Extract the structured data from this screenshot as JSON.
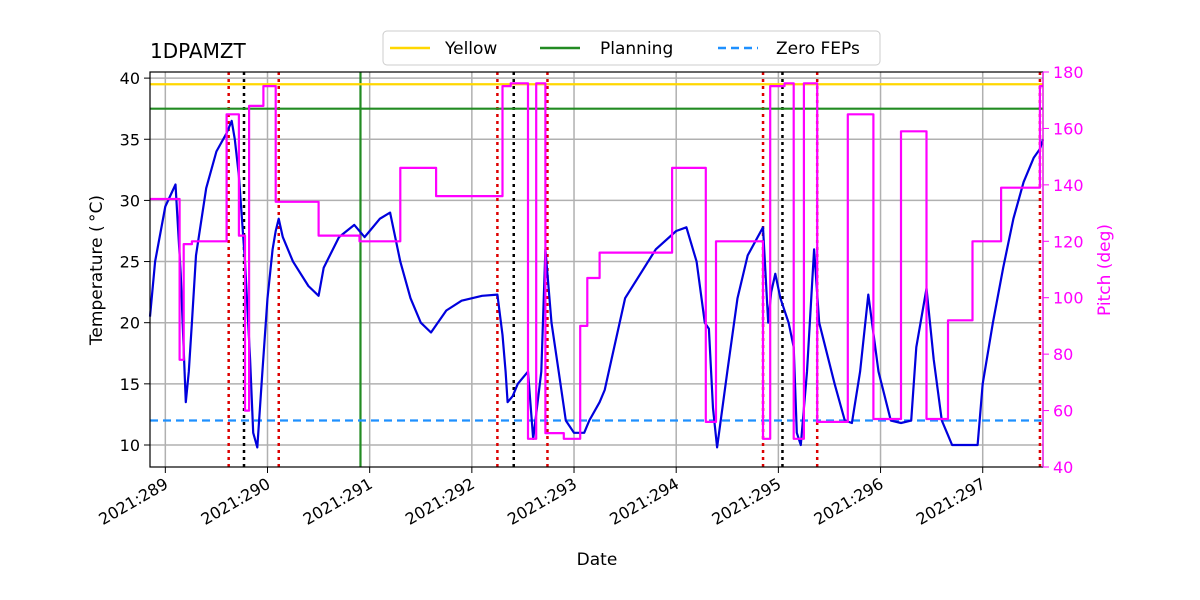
{
  "chart_data": {
    "type": "line",
    "title": "1DPAMZT",
    "xlabel": "Date",
    "ylabel_left": "Temperature ($^\\circ$C)",
    "ylabel_left_display": "Temperature ( °C)",
    "ylabel_right": "Pitch (deg)",
    "xlim": [
      288.85,
      297.59
    ],
    "ylim_left": [
      8.2,
      40.5
    ],
    "ylim_right": [
      40,
      180
    ],
    "grid": true,
    "legend_placement": "top-center",
    "x_ticks": [
      {
        "value": 289,
        "label": "2021:289"
      },
      {
        "value": 290,
        "label": "2021:290"
      },
      {
        "value": 291,
        "label": "2021:291"
      },
      {
        "value": 292,
        "label": "2021:292"
      },
      {
        "value": 293,
        "label": "2021:293"
      },
      {
        "value": 294,
        "label": "2021:294"
      },
      {
        "value": 295,
        "label": "2021:295"
      },
      {
        "value": 296,
        "label": "2021:296"
      },
      {
        "value": 297,
        "label": "2021:297"
      }
    ],
    "y_ticks_left": [
      10,
      15,
      20,
      25,
      30,
      35,
      40
    ],
    "y_ticks_right": [
      40,
      60,
      80,
      100,
      120,
      140,
      160,
      180
    ],
    "colors": {
      "temperature": "#0000dd",
      "pitch": "#ff00ff",
      "yellow": "#ffd700",
      "planning": "#228b22",
      "zero_feps": "#1e90ff",
      "red_markers": "#dd0000",
      "black_markers": "#000000",
      "grid": "#b0b0b0",
      "right_axis": "#ff00ff"
    },
    "legend": [
      {
        "label": "Yellow",
        "color": "#ffd700",
        "style": "solid"
      },
      {
        "label": "Planning",
        "color": "#228b22",
        "style": "solid"
      },
      {
        "label": "Zero FEPs",
        "color": "#1e90ff",
        "style": "dashed"
      }
    ],
    "hlines": [
      {
        "name": "Yellow",
        "value": 39.5,
        "color": "#ffd700",
        "style": "solid"
      },
      {
        "name": "Planning",
        "value": 37.5,
        "color": "#228b22",
        "style": "solid"
      },
      {
        "name": "Zero FEPs",
        "value": 12.0,
        "color": "#1e90ff",
        "style": "dashed"
      }
    ],
    "vline_now": {
      "value": 290.91,
      "color": "#228b22",
      "style": "solid"
    },
    "vlines_red": [
      289.62,
      290.11,
      292.25,
      292.74,
      294.85,
      295.38,
      297.56
    ],
    "vlines_black": [
      289.77,
      292.41,
      295.04
    ],
    "series": [
      {
        "name": "Temperature",
        "axis": "left",
        "color": "#0000dd",
        "x": [
          288.85,
          288.9,
          289.0,
          289.1,
          289.15,
          289.2,
          289.23,
          289.26,
          289.3,
          289.4,
          289.5,
          289.6,
          289.65,
          289.68,
          289.72,
          289.78,
          289.83,
          289.86,
          289.9,
          289.95,
          290.0,
          290.05,
          290.08,
          290.11,
          290.15,
          290.25,
          290.4,
          290.5,
          290.55,
          290.7,
          290.85,
          290.95,
          291.0,
          291.1,
          291.2,
          291.3,
          291.4,
          291.5,
          291.6,
          291.75,
          291.9,
          292.1,
          292.25,
          292.3,
          292.33,
          292.35,
          292.4,
          292.45,
          292.5,
          292.55,
          292.6,
          292.68,
          292.72,
          292.78,
          292.85,
          292.92,
          293.0,
          293.1,
          293.15,
          293.25,
          293.3,
          293.5,
          293.8,
          294.0,
          294.1,
          294.2,
          294.28,
          294.32,
          294.36,
          294.4,
          294.5,
          294.6,
          294.7,
          294.85,
          294.9,
          294.93,
          294.97,
          295.02,
          295.1,
          295.15,
          295.18,
          295.22,
          295.28,
          295.35,
          295.4,
          295.55,
          295.65,
          295.72,
          295.8,
          295.88,
          295.98,
          296.1,
          296.2,
          296.3,
          296.35,
          296.45,
          296.52,
          296.6,
          296.65,
          296.7,
          296.8,
          296.9,
          296.95,
          297.0,
          297.1,
          297.2,
          297.3,
          297.4,
          297.5,
          297.56,
          297.59
        ],
        "y": [
          20.5,
          25.0,
          29.5,
          31.3,
          24.0,
          13.5,
          16.0,
          20.0,
          25.5,
          31.0,
          34.0,
          35.5,
          36.5,
          35.0,
          32.0,
          25.0,
          17.0,
          11.0,
          9.8,
          16.0,
          22.0,
          26.0,
          27.5,
          28.5,
          27.0,
          25.0,
          23.0,
          22.2,
          24.5,
          27.0,
          28.0,
          27.0,
          27.5,
          28.5,
          29.0,
          25.0,
          22.0,
          20.0,
          19.2,
          21.0,
          21.8,
          22.2,
          22.3,
          19.0,
          16.0,
          13.5,
          14.0,
          15.0,
          15.5,
          16.0,
          10.5,
          16.0,
          26.0,
          20.0,
          16.0,
          12.0,
          11.0,
          11.0,
          12.0,
          13.5,
          14.5,
          22.0,
          26.0,
          27.5,
          27.8,
          25.0,
          20.0,
          19.5,
          13.0,
          9.8,
          16.0,
          22.0,
          25.5,
          27.8,
          20.0,
          22.5,
          24.0,
          22.0,
          20.0,
          18.0,
          11.0,
          10.0,
          16.0,
          26.0,
          20.0,
          15.0,
          12.0,
          11.8,
          16.0,
          22.3,
          16.0,
          12.0,
          11.8,
          12.0,
          18.0,
          22.8,
          17.0,
          12.0,
          11.0,
          10.0,
          10.0,
          10.0,
          10.0,
          15.0,
          20.0,
          24.5,
          28.5,
          31.5,
          33.5,
          34.2,
          35.0
        ]
      },
      {
        "name": "Pitch",
        "axis": "right",
        "color": "#ff00ff",
        "x": [
          288.85,
          289.14,
          289.14,
          289.18,
          289.18,
          289.26,
          289.26,
          289.6,
          289.6,
          289.72,
          289.72,
          289.78,
          289.78,
          289.82,
          289.82,
          289.96,
          289.96,
          290.0,
          290.0,
          290.08,
          290.08,
          290.1,
          290.1,
          290.5,
          290.5,
          290.9,
          290.9,
          291.3,
          291.3,
          291.65,
          291.65,
          292.22,
          292.22,
          292.3,
          292.3,
          292.38,
          292.38,
          292.55,
          292.55,
          292.63,
          292.63,
          292.72,
          292.72,
          292.9,
          292.9,
          293.06,
          293.06,
          293.13,
          293.13,
          293.25,
          293.25,
          293.96,
          293.96,
          294.29,
          294.29,
          294.39,
          294.39,
          294.85,
          294.85,
          294.92,
          294.92,
          295.06,
          295.06,
          295.15,
          295.15,
          295.25,
          295.25,
          295.38,
          295.38,
          295.68,
          295.68,
          295.93,
          295.93,
          296.2,
          296.2,
          296.45,
          296.45,
          296.66,
          296.66,
          296.9,
          296.9,
          297.18,
          297.18,
          297.56,
          297.56,
          297.59
        ],
        "y": [
          135,
          135,
          78,
          78,
          119,
          119,
          120,
          120,
          165,
          165,
          122,
          122,
          60,
          60,
          168,
          168,
          175,
          175,
          175,
          175,
          134,
          134,
          134,
          134,
          122,
          122,
          120,
          120,
          146,
          146,
          136,
          136,
          136,
          136,
          175,
          175,
          176,
          176,
          50,
          50,
          176,
          176,
          52,
          52,
          50,
          50,
          90,
          90,
          107,
          107,
          116,
          116,
          146,
          146,
          56,
          56,
          120,
          120,
          50,
          50,
          175,
          175,
          176,
          176,
          50,
          50,
          176,
          176,
          56,
          56,
          165,
          165,
          57,
          57,
          159,
          159,
          57,
          57,
          92,
          92,
          120,
          120,
          139,
          139,
          175,
          175
        ]
      }
    ]
  }
}
